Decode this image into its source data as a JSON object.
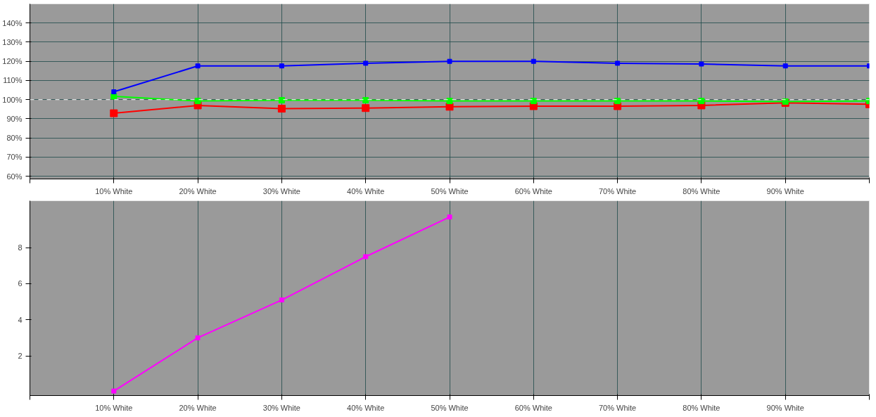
{
  "chart_data": [
    {
      "type": "line",
      "categories": [
        null,
        "10% White",
        "20% White",
        "30% White",
        "40% White",
        "50% White",
        "60% White",
        "70% White",
        "80% White",
        "90% White",
        null
      ],
      "series": [
        {
          "color": "#0000ff",
          "values": [
            null,
            104.1,
            117.6,
            117.6,
            119,
            120,
            120,
            119,
            118.6,
            117.6,
            117.6
          ]
        },
        {
          "color": "#00ff00",
          "values": [
            null,
            101.7,
            99.3,
            99.7,
            99.7,
            99.3,
            99.3,
            99.3,
            99.3,
            99,
            99.3
          ]
        },
        {
          "color": "#ff0000",
          "values": [
            null,
            92.9,
            97,
            95.3,
            95.6,
            96.3,
            96.6,
            96.6,
            97,
            98.3,
            97.6
          ]
        }
      ],
      "ylim": [
        58.6,
        150
      ],
      "yticks": [
        {
          "value": 60,
          "label": "60%"
        },
        {
          "value": 70,
          "label": "70%"
        },
        {
          "value": 80,
          "label": "80%"
        },
        {
          "value": 90,
          "label": "90%"
        },
        {
          "value": 100,
          "label": "100%"
        },
        {
          "value": 110,
          "label": "110%"
        },
        {
          "value": 120,
          "label": "120%"
        },
        {
          "value": 130,
          "label": "130%"
        },
        {
          "value": 140,
          "label": "140%"
        }
      ],
      "ref_lines": [
        {
          "axis": "y",
          "value": 100,
          "color": "#ffffff",
          "line_style": "dashed"
        }
      ],
      "grid": true,
      "marker": "square",
      "line_style": "solid"
    },
    {
      "type": "line",
      "categories": [
        null,
        "10% White",
        "20% White",
        "30% White",
        "40% White",
        "50% White",
        "60% White",
        "70% White",
        "80% White",
        "90% White",
        null
      ],
      "series": [
        {
          "color": "#ff00ff",
          "values": [
            null,
            0.05,
            3.0,
            5.1,
            7.5,
            9.7,
            null,
            null,
            null,
            null,
            null
          ]
        }
      ],
      "ylim": [
        -0.2,
        10.6
      ],
      "yticks": [
        2,
        4,
        6,
        8
      ],
      "grid": "x",
      "marker": "square",
      "line_style": "solid"
    }
  ]
}
